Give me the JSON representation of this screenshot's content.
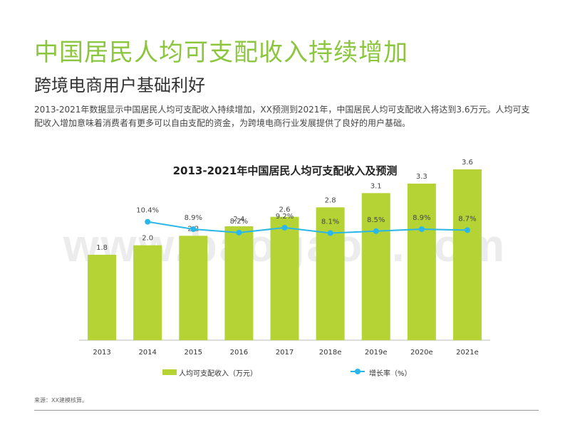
{
  "header": {
    "title": "中国居民人均可支配收入持续增加",
    "subtitle": "跨境电商用户基础利好",
    "description": "2013-2021年数据显示中国居民人均可支配收入持续增加，XX预测到2021年，中国居民人均可支配收入将达到3.6万元。人均可支配收入增加意味着消费者有更多可以自由支配的资金，为跨境电商行业发展提供了良好的用户基础。"
  },
  "watermark": "www.baogao8.com",
  "chart_data": {
    "type": "bar",
    "title": "2013-2021年中国居民人均可支配收入及预测",
    "categories": [
      "2013",
      "2014",
      "2015",
      "2016",
      "2017",
      "2018e",
      "2019e",
      "2020e",
      "2021e"
    ],
    "series": [
      {
        "name": "人均可支配收入（万元）",
        "type": "bar",
        "color": "#b5d334",
        "values": [
          1.8,
          2.0,
          2.2,
          2.4,
          2.6,
          2.8,
          3.1,
          3.3,
          3.6
        ],
        "labels": [
          "1.8",
          "2.0",
          "2.2",
          "2.4",
          "2.6",
          "2.8",
          "3.1",
          "3.3",
          "3.6"
        ]
      },
      {
        "name": "增长率（%）",
        "type": "line",
        "color": "#29b6e8",
        "values": [
          null,
          10.4,
          8.9,
          8.2,
          9.2,
          8.1,
          8.5,
          8.9,
          8.7
        ],
        "labels": [
          "",
          "10.4%",
          "8.9%",
          "8.2%",
          "9.2%",
          "8.1%",
          "8.5%",
          "8.9%",
          "8.7%"
        ]
      }
    ],
    "ylim_bar": [
      0,
      4.5
    ],
    "ylim_line": [
      0,
      20
    ],
    "grid": false,
    "legend": "bottom"
  },
  "footer": {
    "source": "来源：XX建模核算。"
  }
}
